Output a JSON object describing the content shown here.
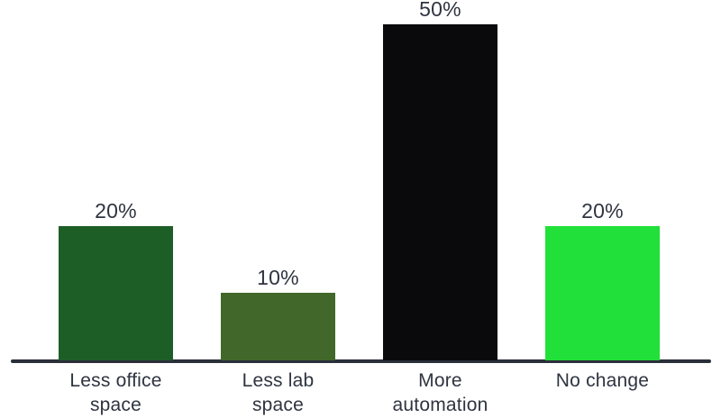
{
  "chart_data": {
    "type": "bar",
    "title": "",
    "xlabel": "",
    "ylabel": "",
    "categories": [
      "Less office space",
      "Less lab space",
      "More automation",
      "No change"
    ],
    "category_lines": [
      [
        "Less office",
        "space"
      ],
      [
        "Less lab",
        "space"
      ],
      [
        "More",
        "automation"
      ],
      [
        "No change"
      ]
    ],
    "values": [
      20,
      10,
      50,
      20
    ],
    "value_labels": [
      "20%",
      "10%",
      "50%",
      "20%"
    ],
    "bar_colors": [
      "#1d5e26",
      "#41682a",
      "#0a0a0c",
      "#21e039"
    ],
    "ylim": [
      0,
      50
    ],
    "grid": false,
    "legend": null,
    "value_label_position": "above-bar",
    "text_color": "#2e3440",
    "axis_color": "#2a2f3a",
    "background_color": "#ffffff"
  }
}
